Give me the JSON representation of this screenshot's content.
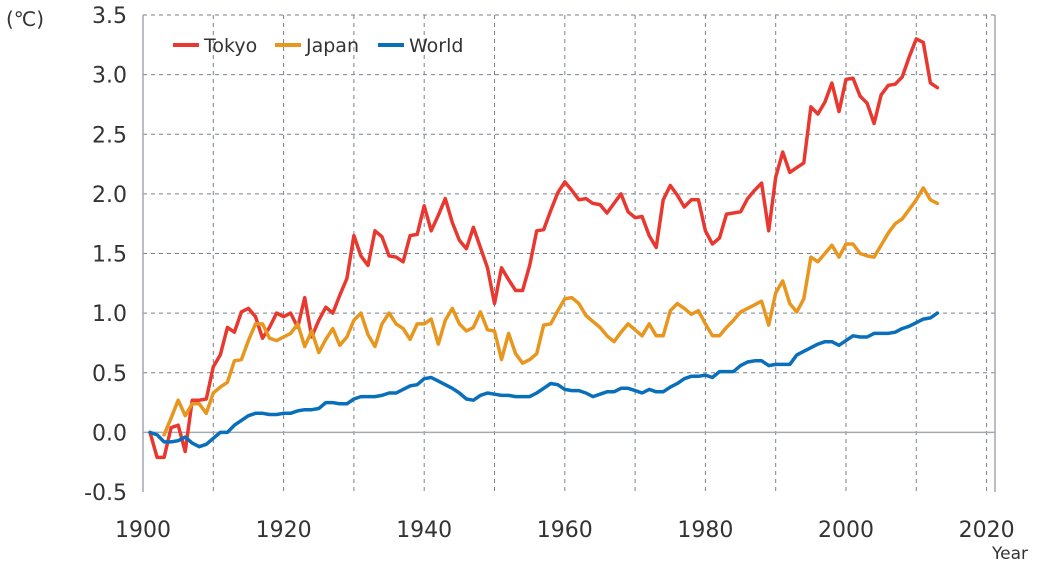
{
  "chart_data": {
    "type": "line",
    "title": "",
    "xlabel": "Year",
    "ylabel": "(℃)",
    "xlim": [
      1900,
      2021
    ],
    "ylim": [
      -0.5,
      3.5
    ],
    "xticks": [
      "1900",
      "1920",
      "1940",
      "1960",
      "1980",
      "2000",
      "2020"
    ],
    "yticks": [
      "-0.5",
      "0.0",
      "0.5",
      "1.0",
      "1.5",
      "2.0",
      "2.5",
      "3.0",
      "3.5"
    ],
    "grid": true,
    "legend_placement": "top-left",
    "series": [
      {
        "name": "Tokyo",
        "color": "#e8382f",
        "start_year": 1901,
        "values": [
          0.0,
          -0.21,
          -0.21,
          0.04,
          0.06,
          -0.16,
          0.27,
          0.27,
          0.28,
          0.55,
          0.65,
          0.88,
          0.84,
          1.01,
          1.04,
          0.97,
          0.79,
          0.88,
          1.0,
          0.97,
          1.0,
          0.88,
          1.13,
          0.8,
          0.94,
          1.05,
          1.0,
          1.15,
          1.29,
          1.65,
          1.48,
          1.4,
          1.69,
          1.64,
          1.48,
          1.47,
          1.43,
          1.65,
          1.66,
          1.9,
          1.69,
          1.82,
          1.96,
          1.76,
          1.61,
          1.54,
          1.72,
          1.55,
          1.38,
          1.08,
          1.38,
          1.28,
          1.19,
          1.19,
          1.4,
          1.69,
          1.7,
          1.86,
          2.01,
          2.1,
          2.03,
          1.95,
          1.96,
          1.92,
          1.91,
          1.84,
          1.92,
          2.0,
          1.85,
          1.8,
          1.81,
          1.65,
          1.55,
          1.95,
          2.07,
          1.99,
          1.89,
          1.95,
          1.95,
          1.69,
          1.58,
          1.63,
          1.83,
          1.84,
          1.85,
          1.96,
          2.03,
          2.09,
          1.69,
          2.14,
          2.35,
          2.18,
          2.22,
          2.26,
          2.73,
          2.67,
          2.77,
          2.93,
          2.69,
          2.96,
          2.97,
          2.82,
          2.76,
          2.59,
          2.83,
          2.91,
          2.92,
          2.98,
          3.15,
          3.3,
          3.27,
          2.93,
          2.89
        ]
      },
      {
        "name": "Japan",
        "color": "#e8961e",
        "start_year": 1903,
        "values": [
          -0.02,
          0.12,
          0.27,
          0.14,
          0.24,
          0.24,
          0.16,
          0.33,
          0.38,
          0.42,
          0.6,
          0.61,
          0.77,
          0.91,
          0.91,
          0.79,
          0.77,
          0.8,
          0.83,
          0.91,
          0.72,
          0.85,
          0.67,
          0.78,
          0.87,
          0.73,
          0.8,
          0.94,
          1.0,
          0.82,
          0.72,
          0.91,
          1.0,
          0.91,
          0.87,
          0.78,
          0.91,
          0.91,
          0.95,
          0.74,
          0.94,
          1.04,
          0.91,
          0.85,
          0.88,
          1.01,
          0.86,
          0.85,
          0.61,
          0.83,
          0.66,
          0.58,
          0.61,
          0.66,
          0.9,
          0.91,
          1.02,
          1.12,
          1.13,
          1.08,
          0.98,
          0.93,
          0.88,
          0.81,
          0.76,
          0.84,
          0.91,
          0.86,
          0.81,
          0.91,
          0.81,
          0.81,
          1.02,
          1.08,
          1.04,
          0.99,
          1.02,
          0.91,
          0.81,
          0.81,
          0.88,
          0.94,
          1.01,
          1.04,
          1.07,
          1.1,
          0.9,
          1.17,
          1.27,
          1.08,
          1.01,
          1.12,
          1.47,
          1.43,
          1.5,
          1.57,
          1.47,
          1.58,
          1.58,
          1.5,
          1.48,
          1.47,
          1.57,
          1.67,
          1.75,
          1.79,
          1.87,
          1.95,
          2.05,
          1.95,
          1.92
        ]
      },
      {
        "name": "World",
        "color": "#0a6fba",
        "start_year": 1901,
        "values": [
          0.0,
          -0.02,
          -0.08,
          -0.08,
          -0.07,
          -0.04,
          -0.09,
          -0.12,
          -0.1,
          -0.05,
          0.0,
          0.0,
          0.06,
          0.1,
          0.14,
          0.16,
          0.16,
          0.15,
          0.15,
          0.16,
          0.16,
          0.18,
          0.19,
          0.19,
          0.2,
          0.25,
          0.25,
          0.24,
          0.24,
          0.28,
          0.3,
          0.3,
          0.3,
          0.31,
          0.33,
          0.33,
          0.36,
          0.39,
          0.4,
          0.45,
          0.46,
          0.43,
          0.4,
          0.37,
          0.33,
          0.28,
          0.27,
          0.31,
          0.33,
          0.32,
          0.31,
          0.31,
          0.3,
          0.3,
          0.3,
          0.33,
          0.37,
          0.41,
          0.4,
          0.36,
          0.35,
          0.35,
          0.33,
          0.3,
          0.32,
          0.34,
          0.34,
          0.37,
          0.37,
          0.35,
          0.33,
          0.36,
          0.34,
          0.34,
          0.38,
          0.41,
          0.45,
          0.47,
          0.47,
          0.48,
          0.46,
          0.51,
          0.51,
          0.51,
          0.56,
          0.59,
          0.6,
          0.6,
          0.56,
          0.57,
          0.57,
          0.57,
          0.65,
          0.68,
          0.71,
          0.74,
          0.76,
          0.76,
          0.73,
          0.77,
          0.81,
          0.8,
          0.8,
          0.83,
          0.83,
          0.83,
          0.84,
          0.87,
          0.89,
          0.92,
          0.95,
          0.96,
          1.0
        ]
      }
    ]
  }
}
